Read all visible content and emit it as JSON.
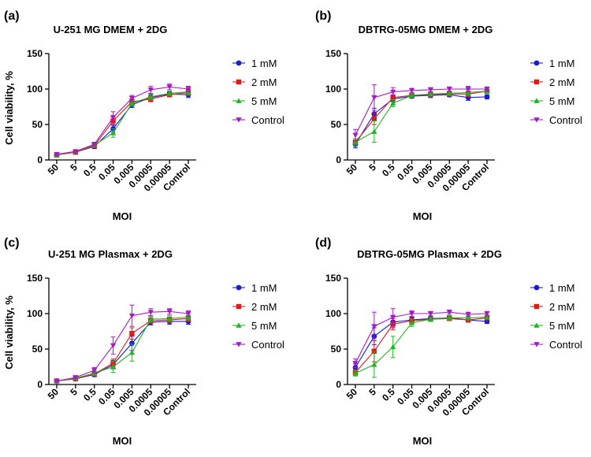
{
  "chart_data": [
    {
      "panel": "(a)",
      "type": "line",
      "title": "U-251 MG DMEM + 2DG",
      "xlabel": "MOI",
      "ylabel": "Cell viability, %",
      "ylim": [
        0,
        150
      ],
      "yticks": [
        "0",
        "50",
        "100",
        "150"
      ],
      "categories": [
        "50",
        "5",
        "0.5",
        "0.05",
        "0.005",
        "0.0005",
        "0.00005",
        "Control"
      ],
      "legend_position": "right",
      "series": [
        {
          "name": "1 mM",
          "color": "#1a1adb",
          "marker": "circle",
          "values": [
            7,
            11,
            19,
            44,
            78,
            88,
            93,
            92
          ],
          "errors": [
            2,
            2,
            3,
            5,
            4,
            4,
            3,
            4
          ]
        },
        {
          "name": "2 mM",
          "color": "#e01a1a",
          "marker": "square",
          "values": [
            7,
            11,
            20,
            55,
            82,
            86,
            92,
            95
          ],
          "errors": [
            2,
            2,
            3,
            5,
            4,
            4,
            3,
            4
          ]
        },
        {
          "name": "5 mM",
          "color": "#1fb51f",
          "marker": "triangle-up",
          "values": [
            7,
            12,
            21,
            38,
            80,
            89,
            94,
            96
          ],
          "errors": [
            2,
            2,
            3,
            6,
            4,
            4,
            3,
            4
          ]
        },
        {
          "name": "Control",
          "color": "#a51ac4",
          "marker": "triangle-down",
          "values": [
            8,
            12,
            22,
            60,
            87,
            99,
            103,
            100
          ],
          "errors": [
            2,
            2,
            3,
            8,
            4,
            5,
            4,
            4
          ]
        }
      ]
    },
    {
      "panel": "(b)",
      "type": "line",
      "title": "DBTRG-05MG DMEM + 2DG",
      "xlabel": "MOI",
      "ylabel": "",
      "ylim": [
        0,
        150
      ],
      "yticks": [
        "0",
        "50",
        "100",
        "150"
      ],
      "categories": [
        "50",
        "5",
        "0.5",
        "0.05",
        "0.005",
        "0.0005",
        "0.00005",
        "Control"
      ],
      "legend_position": "right",
      "series": [
        {
          "name": "1 mM",
          "color": "#1a1adb",
          "marker": "circle",
          "values": [
            22,
            65,
            86,
            90,
            91,
            92,
            88,
            89
          ],
          "errors": [
            5,
            8,
            4,
            3,
            3,
            3,
            4,
            3
          ]
        },
        {
          "name": "2 mM",
          "color": "#e01a1a",
          "marker": "square",
          "values": [
            25,
            58,
            88,
            91,
            92,
            93,
            93,
            97
          ],
          "errors": [
            5,
            8,
            4,
            3,
            3,
            3,
            4,
            3
          ]
        },
        {
          "name": "5 mM",
          "color": "#1fb51f",
          "marker": "triangle-up",
          "values": [
            25,
            40,
            80,
            91,
            93,
            94,
            95,
            97
          ],
          "errors": [
            5,
            15,
            5,
            3,
            3,
            3,
            4,
            3
          ]
        },
        {
          "name": "Control",
          "color": "#a51ac4",
          "marker": "triangle-down",
          "values": [
            35,
            88,
            96,
            98,
            99,
            100,
            100,
            100
          ],
          "errors": [
            8,
            18,
            6,
            3,
            3,
            3,
            4,
            3
          ]
        }
      ]
    },
    {
      "panel": "(c)",
      "type": "line",
      "title": "U-251 MG Plasmax + 2DG",
      "xlabel": "MOI",
      "ylabel": "Cell viability, %",
      "ylim": [
        0,
        150
      ],
      "yticks": [
        "0",
        "50",
        "100",
        "150"
      ],
      "categories": [
        "50",
        "5",
        "0.5",
        "0.05",
        "0.005",
        "0.0005",
        "0.00005",
        "Control"
      ],
      "legend_position": "right",
      "series": [
        {
          "name": "1 mM",
          "color": "#1a1adb",
          "marker": "circle",
          "values": [
            5,
            8,
            14,
            28,
            58,
            88,
            89,
            89
          ],
          "errors": [
            1,
            2,
            3,
            6,
            10,
            4,
            4,
            4
          ]
        },
        {
          "name": "2 mM",
          "color": "#e01a1a",
          "marker": "square",
          "values": [
            5,
            8,
            15,
            30,
            72,
            90,
            91,
            93
          ],
          "errors": [
            1,
            2,
            3,
            6,
            8,
            4,
            4,
            4
          ]
        },
        {
          "name": "5 mM",
          "color": "#1fb51f",
          "marker": "triangle-up",
          "values": [
            5,
            9,
            16,
            25,
            45,
            92,
            93,
            95
          ],
          "errors": [
            1,
            2,
            3,
            8,
            12,
            4,
            4,
            4
          ]
        },
        {
          "name": "Control",
          "color": "#a51ac4",
          "marker": "triangle-down",
          "values": [
            5,
            10,
            20,
            55,
            97,
            102,
            103,
            100
          ],
          "errors": [
            1,
            2,
            4,
            12,
            15,
            5,
            4,
            4
          ]
        }
      ]
    },
    {
      "panel": "(d)",
      "type": "line",
      "title": "DBTRG-05MG Plasmax + 2DG",
      "xlabel": "MOI",
      "ylabel": "",
      "ylim": [
        0,
        150
      ],
      "yticks": [
        "0",
        "50",
        "100",
        "150"
      ],
      "categories": [
        "50",
        "5",
        "0.5",
        "0.05",
        "0.005",
        "0.0005",
        "0.00005",
        "Control"
      ],
      "legend_position": "right",
      "series": [
        {
          "name": "1 mM",
          "color": "#1a1adb",
          "marker": "circle",
          "values": [
            24,
            68,
            88,
            91,
            93,
            94,
            91,
            89
          ],
          "errors": [
            5,
            12,
            8,
            4,
            3,
            3,
            3,
            3
          ]
        },
        {
          "name": "2 mM",
          "color": "#e01a1a",
          "marker": "square",
          "values": [
            17,
            47,
            85,
            90,
            92,
            93,
            91,
            94
          ],
          "errors": [
            4,
            15,
            8,
            4,
            3,
            3,
            3,
            3
          ]
        },
        {
          "name": "5 mM",
          "color": "#1fb51f",
          "marker": "triangle-up",
          "values": [
            16,
            28,
            53,
            87,
            92,
            94,
            94,
            95
          ],
          "errors": [
            4,
            18,
            15,
            5,
            3,
            3,
            3,
            3
          ]
        },
        {
          "name": "Control",
          "color": "#a51ac4",
          "marker": "triangle-down",
          "values": [
            30,
            82,
            95,
            100,
            100,
            102,
            99,
            100
          ],
          "errors": [
            6,
            20,
            12,
            4,
            3,
            3,
            3,
            3
          ]
        }
      ]
    }
  ]
}
